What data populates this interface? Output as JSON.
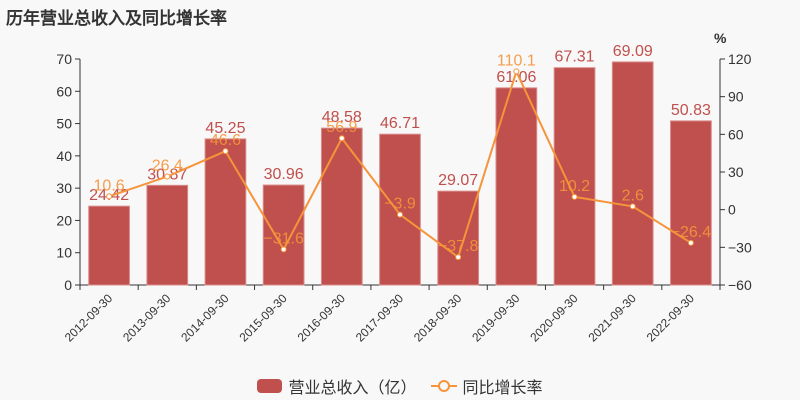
{
  "title": "历年营业总收入及同比增长率",
  "legend": {
    "bar_label": "营业总收入（亿）",
    "line_label": "同比增长率"
  },
  "colors": {
    "bar": "#c0504d",
    "line": "#f5943a",
    "axis": "#333333",
    "background": "#f8f8f8"
  },
  "chart_data": {
    "type": "bar+line",
    "title": "历年营业总收入及同比增长率",
    "categories": [
      "2012-09-30",
      "2013-09-30",
      "2014-09-30",
      "2015-09-30",
      "2016-09-30",
      "2017-09-30",
      "2018-09-30",
      "2019-09-30",
      "2020-09-30",
      "2021-09-30",
      "2022-09-30"
    ],
    "series": [
      {
        "name": "营业总收入（亿）",
        "type": "bar",
        "axis": "left",
        "values": [
          24.42,
          30.87,
          45.25,
          30.96,
          48.58,
          46.71,
          29.07,
          61.06,
          67.31,
          69.09,
          50.83
        ]
      },
      {
        "name": "同比增长率",
        "type": "line",
        "axis": "right",
        "values": [
          10.6,
          26.4,
          46.6,
          -31.6,
          56.9,
          -3.9,
          -37.8,
          110.1,
          10.2,
          2.6,
          -26.4
        ]
      }
    ],
    "left_axis": {
      "min": 0,
      "max": 70,
      "ticks": [
        0,
        10,
        20,
        30,
        40,
        50,
        60,
        70
      ]
    },
    "right_axis": {
      "label": "%",
      "min": -60,
      "max": 120,
      "ticks": [
        -60,
        -30,
        0,
        30,
        60,
        90,
        120
      ]
    },
    "grid": false,
    "legend_position": "bottom"
  }
}
